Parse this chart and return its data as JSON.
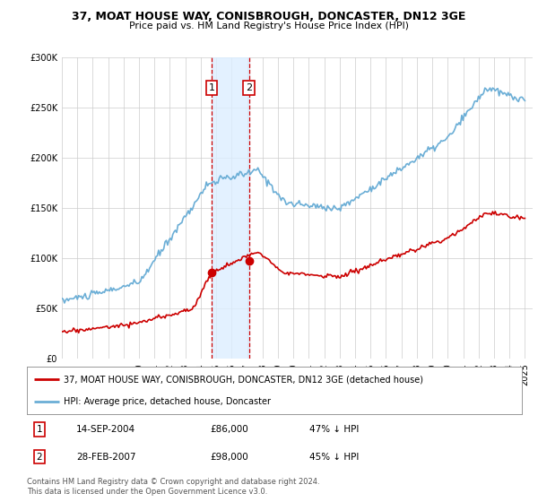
{
  "title1": "37, MOAT HOUSE WAY, CONISBROUGH, DONCASTER, DN12 3GE",
  "title2": "Price paid vs. HM Land Registry's House Price Index (HPI)",
  "legend_line1": "37, MOAT HOUSE WAY, CONISBROUGH, DONCASTER, DN12 3GE (detached house)",
  "legend_line2": "HPI: Average price, detached house, Doncaster",
  "footnote": "Contains HM Land Registry data © Crown copyright and database right 2024.\nThis data is licensed under the Open Government Licence v3.0.",
  "point1_date": "14-SEP-2004",
  "point1_price": 86000,
  "point1_hpi": "47% ↓ HPI",
  "point2_date": "28-FEB-2007",
  "point2_price": 98000,
  "point2_hpi": "45% ↓ HPI",
  "hpi_color": "#6baed6",
  "price_color": "#cc0000",
  "background_color": "#ffffff",
  "grid_color": "#cccccc",
  "shade_color": "#ddeeff",
  "ylim": [
    0,
    300000
  ],
  "yticks": [
    0,
    50000,
    100000,
    150000,
    200000,
    250000,
    300000
  ]
}
